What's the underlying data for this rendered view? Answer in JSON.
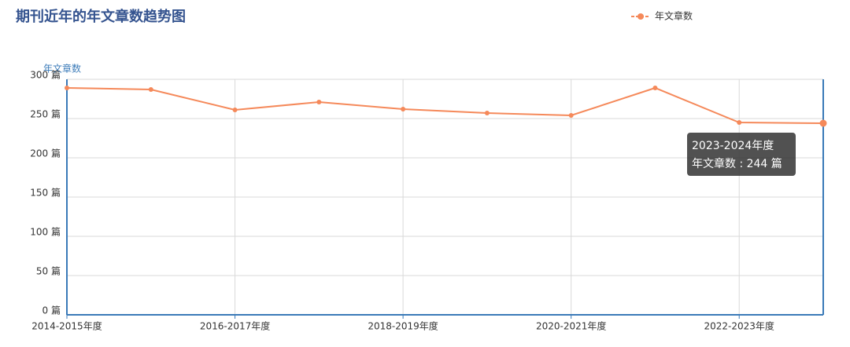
{
  "chart_data": {
    "type": "line",
    "title": "期刊近年的年文章数趋势图",
    "y_label": "年文章数",
    "categories": [
      "2014-2015年度",
      null,
      "2016-2017年度",
      null,
      "2018-2019年度",
      null,
      "2020-2021年度",
      null,
      "2022-2023年度",
      null
    ],
    "series": [
      {
        "name": "年文章数",
        "color": "#f5895a",
        "values": [
          289,
          287,
          261,
          271,
          262,
          257,
          254,
          289,
          245,
          244
        ]
      }
    ],
    "ylim": [
      0,
      300
    ],
    "yticks": [
      {
        "value": 0,
        "label": "0 篇"
      },
      {
        "value": 50,
        "label": "50 篇"
      },
      {
        "value": 100,
        "label": "100 篇"
      },
      {
        "value": 150,
        "label": "150 篇"
      },
      {
        "value": 200,
        "label": "200 篇"
      },
      {
        "value": 250,
        "label": "250 篇"
      },
      {
        "value": 300,
        "label": "300 篇"
      }
    ],
    "grid": true,
    "legend": "top-right",
    "tooltip": {
      "title": "2023-2024年度",
      "text": "年文章数 : 244 篇"
    }
  }
}
